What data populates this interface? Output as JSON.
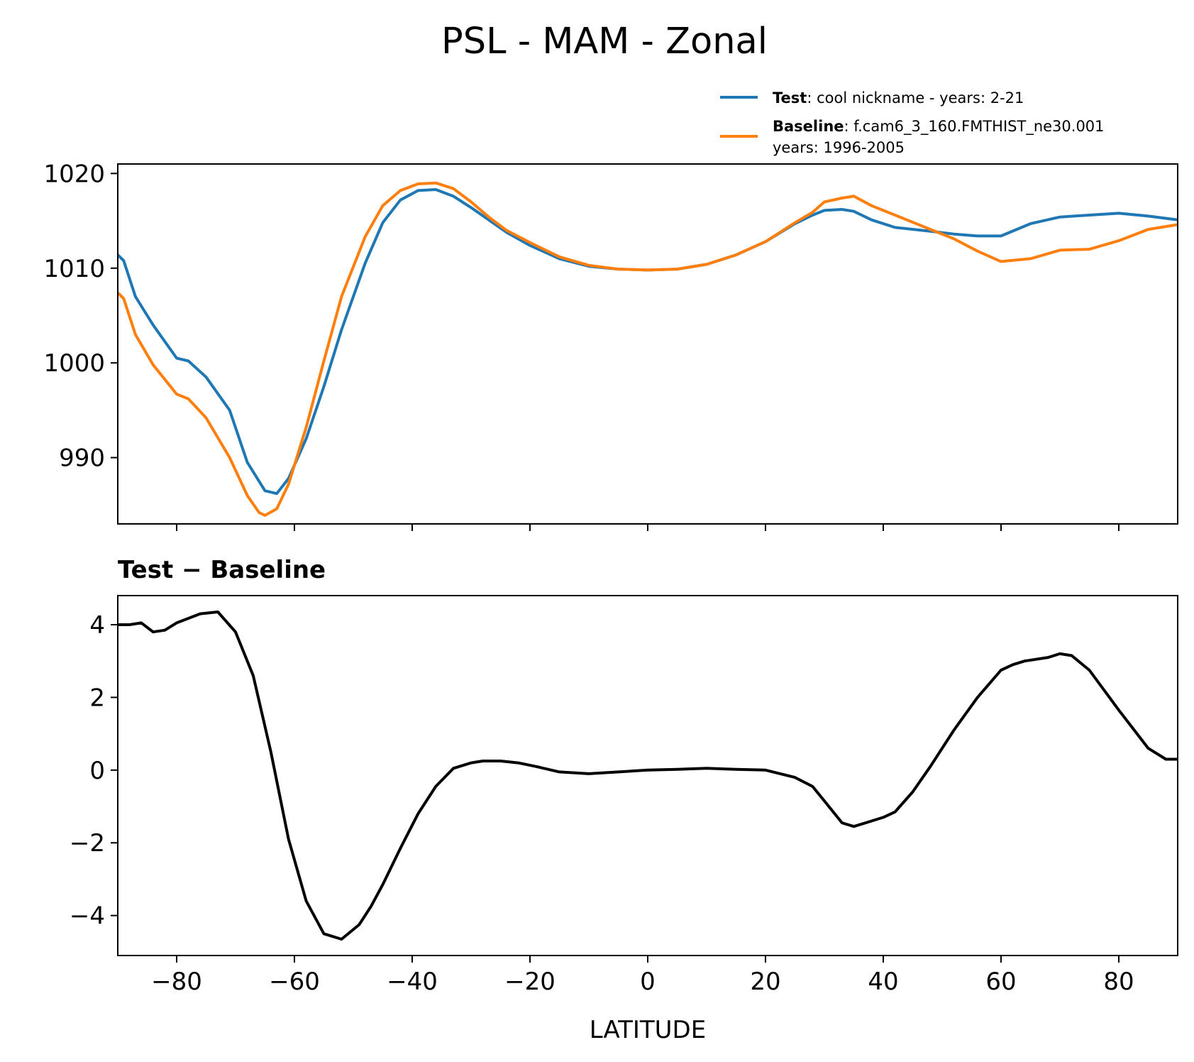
{
  "figure": {
    "title": "PSL - MAM - Zonal"
  },
  "chart_data": [
    {
      "type": "line",
      "panel": "top",
      "title": "",
      "xlabel": "",
      "ylabel": "",
      "xlim": [
        -90,
        90
      ],
      "ylim": [
        983,
        1021
      ],
      "yticks": [
        990,
        1000,
        1010,
        1020
      ],
      "ytick_labels": [
        "990",
        "1000",
        "1010",
        "1020"
      ],
      "xticks": [
        -80,
        -60,
        -40,
        -20,
        0,
        20,
        40,
        60,
        80
      ],
      "grid": false,
      "legend": {
        "placement": "upper-right, above axes",
        "entries": [
          {
            "label_bold": "Test",
            "label_rest": ": cool nickname - years: 2-21",
            "label_line2": "",
            "color": "#1f77b4"
          },
          {
            "label_bold": "Baseline",
            "label_rest": ": f.cam6_3_160.FMTHIST_ne30.001",
            "label_line2": "years: 1996-2005",
            "color": "#ff7f0e"
          }
        ]
      },
      "series": [
        {
          "name": "Test",
          "color": "#1f77b4",
          "x": [
            -90,
            -89,
            -87,
            -84,
            -80,
            -78,
            -75,
            -71,
            -68,
            -65,
            -63,
            -61,
            -58,
            -55,
            -52,
            -48,
            -45,
            -42,
            -39,
            -36,
            -33,
            -30,
            -27,
            -24,
            -20,
            -15,
            -10,
            -5,
            0,
            5,
            10,
            15,
            20,
            25,
            28,
            30,
            33,
            35,
            38,
            42,
            48,
            52,
            56,
            60,
            65,
            70,
            75,
            80,
            85,
            90
          ],
          "y": [
            1011.4,
            1010.8,
            1007,
            1004,
            1000.5,
            1000.2,
            998.5,
            995,
            989.5,
            986.5,
            986.2,
            987.8,
            992,
            997.5,
            1003.5,
            1010.5,
            1014.8,
            1017.2,
            1018.2,
            1018.3,
            1017.6,
            1016.4,
            1015.1,
            1013.8,
            1012.4,
            1011,
            1010.2,
            1009.9,
            1009.8,
            1009.9,
            1010.4,
            1011.4,
            1012.8,
            1014.7,
            1015.6,
            1016.1,
            1016.2,
            1016,
            1015.1,
            1014.3,
            1013.9,
            1013.6,
            1013.4,
            1013.4,
            1014.7,
            1015.4,
            1015.6,
            1015.8,
            1015.5,
            1015.1
          ]
        },
        {
          "name": "Baseline",
          "color": "#ff7f0e",
          "x": [
            -90,
            -89,
            -87,
            -84,
            -80,
            -78,
            -75,
            -71,
            -68,
            -66,
            -65,
            -63,
            -61,
            -58,
            -55,
            -52,
            -48,
            -45,
            -42,
            -39,
            -36,
            -33,
            -30,
            -27,
            -24,
            -20,
            -15,
            -10,
            -5,
            0,
            5,
            10,
            15,
            20,
            25,
            28,
            30,
            33,
            35,
            38,
            42,
            48,
            52,
            56,
            60,
            65,
            70,
            75,
            80,
            85,
            90
          ],
          "y": [
            1007.4,
            1006.8,
            1003,
            999.8,
            996.7,
            996.2,
            994.2,
            990,
            986,
            984.2,
            983.9,
            984.6,
            987.2,
            993.2,
            1000.2,
            1007,
            1013.3,
            1016.6,
            1018.2,
            1018.9,
            1019,
            1018.4,
            1017,
            1015.4,
            1014,
            1012.7,
            1011.2,
            1010.3,
            1009.9,
            1009.8,
            1009.9,
            1010.4,
            1011.4,
            1012.8,
            1014.8,
            1015.9,
            1017,
            1017.4,
            1017.6,
            1016.6,
            1015.6,
            1014.1,
            1013.1,
            1011.8,
            1010.7,
            1011,
            1011.9,
            1012,
            1012.9,
            1014.1,
            1014.6
          ]
        }
      ]
    },
    {
      "type": "line",
      "panel": "bottom",
      "title": "Test − Baseline",
      "xlabel": "LATITUDE",
      "ylabel": "",
      "xlim": [
        -90,
        90
      ],
      "ylim": [
        -5.1,
        4.8
      ],
      "yticks": [
        -4,
        -2,
        0,
        2,
        4
      ],
      "ytick_labels": [
        "−4",
        "−2",
        "0",
        "2",
        "4"
      ],
      "xticks": [
        -80,
        -60,
        -40,
        -20,
        0,
        20,
        40,
        60,
        80
      ],
      "xtick_labels": [
        "−80",
        "−60",
        "−40",
        "−20",
        "0",
        "20",
        "40",
        "60",
        "80"
      ],
      "grid": false,
      "series": [
        {
          "name": "Test − Baseline",
          "color": "#000000",
          "x": [
            -90,
            -88,
            -86,
            -84,
            -82,
            -80,
            -76,
            -73,
            -70,
            -67,
            -64,
            -61,
            -58,
            -55,
            -52,
            -49,
            -47,
            -45,
            -42,
            -39,
            -36,
            -33,
            -30,
            -28,
            -25,
            -22,
            -19,
            -15,
            -10,
            -5,
            0,
            5,
            10,
            15,
            20,
            25,
            28,
            30,
            33,
            35,
            37,
            40,
            42,
            45,
            48,
            52,
            56,
            60,
            62,
            64,
            68,
            70,
            72,
            75,
            80,
            85,
            88,
            90
          ],
          "y": [
            4,
            4,
            4.05,
            3.8,
            3.85,
            4.05,
            4.3,
            4.35,
            3.8,
            2.6,
            0.5,
            -1.9,
            -3.6,
            -4.5,
            -4.65,
            -4.25,
            -3.75,
            -3.15,
            -2.15,
            -1.2,
            -0.45,
            0.05,
            0.2,
            0.25,
            0.25,
            0.2,
            0.1,
            -0.05,
            -0.1,
            -0.05,
            0,
            0.02,
            0.05,
            0.02,
            0,
            -0.2,
            -0.45,
            -0.85,
            -1.45,
            -1.55,
            -1.45,
            -1.3,
            -1.15,
            -0.6,
            0.1,
            1.1,
            2,
            2.75,
            2.9,
            3,
            3.1,
            3.2,
            3.15,
            2.75,
            1.65,
            0.6,
            0.3,
            0.3
          ]
        }
      ]
    }
  ]
}
